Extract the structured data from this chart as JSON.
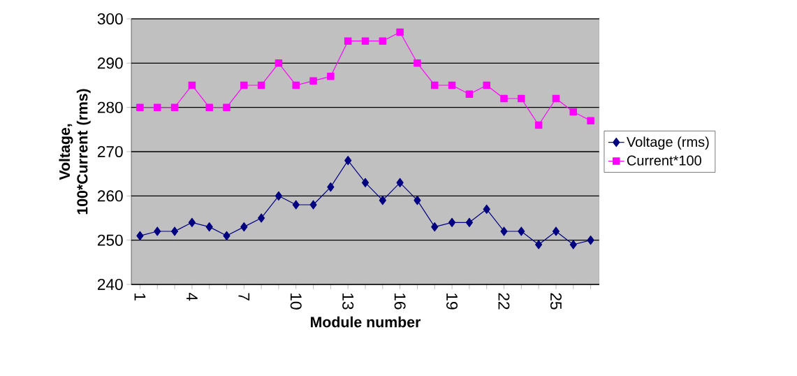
{
  "chart_data": {
    "type": "line",
    "xlabel": "Module number",
    "ylabel": "Voltage, 100*Current (rms)",
    "categories": [
      "1",
      null,
      null,
      "4",
      null,
      null,
      "7",
      null,
      null,
      "10",
      null,
      null,
      "13",
      null,
      null,
      "16",
      null,
      null,
      "19",
      null,
      null,
      "22",
      null,
      null,
      "25",
      null,
      null
    ],
    "series": [
      {
        "name": "Voltage (rms)",
        "color": "#000080",
        "marker": "diamond",
        "values": [
          251,
          252,
          252,
          254,
          253,
          251,
          253,
          255,
          260,
          258,
          258,
          262,
          268,
          263,
          259,
          263,
          259,
          253,
          254,
          254,
          257,
          252,
          252,
          249,
          252,
          249,
          250
        ]
      },
      {
        "name": "Current*100",
        "color": "#ff00ff",
        "marker": "square",
        "values": [
          280,
          280,
          280,
          285,
          280,
          280,
          285,
          285,
          290,
          285,
          286,
          287,
          295,
          295,
          295,
          297,
          290,
          285,
          285,
          283,
          285,
          282,
          282,
          276,
          282,
          279,
          277
        ]
      }
    ],
    "ylim": [
      240,
      300
    ],
    "yticks": [
      240,
      250,
      260,
      270,
      280,
      290,
      300
    ],
    "grid": "y",
    "legend": "right",
    "line_style": "solid"
  }
}
